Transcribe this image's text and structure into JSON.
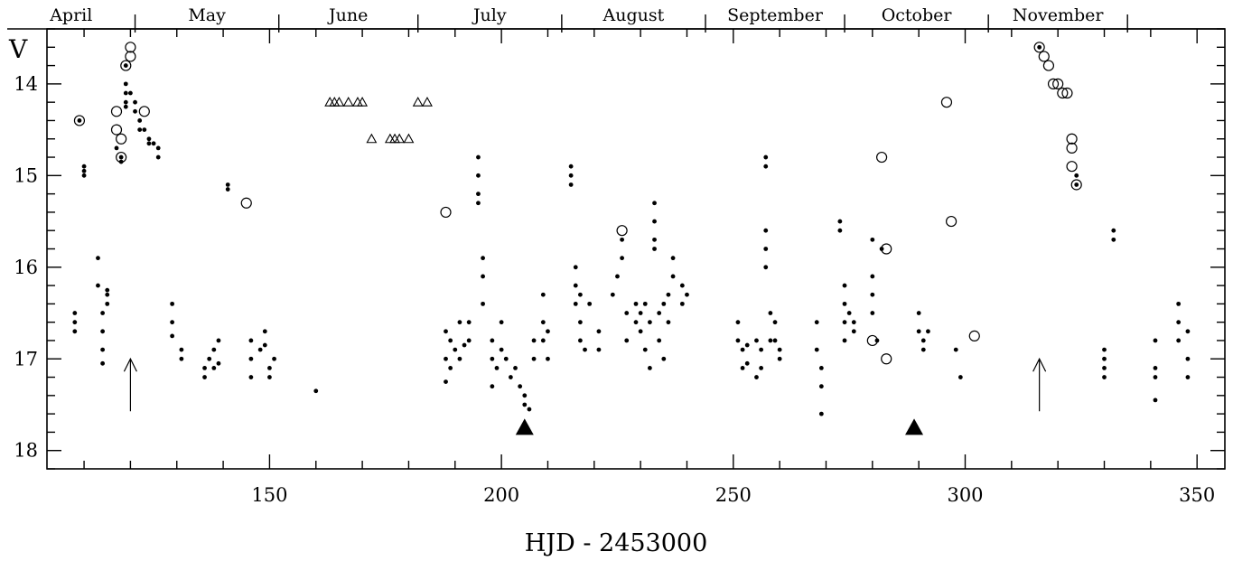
{
  "chart_data": {
    "type": "scatter",
    "xlabel": "HJD - 2453000",
    "ylabel": "V",
    "xlim": [
      102,
      356
    ],
    "ylim": [
      18.2,
      13.4
    ],
    "y_inverted": true,
    "x_ticks": [
      150,
      200,
      250,
      300,
      350
    ],
    "y_ticks": [
      14,
      15,
      16,
      17,
      18
    ],
    "months": [
      {
        "label": "April",
        "start": 91,
        "end": 121
      },
      {
        "label": "May",
        "start": 121,
        "end": 152
      },
      {
        "label": "June",
        "start": 152,
        "end": 182
      },
      {
        "label": "July",
        "start": 182,
        "end": 213
      },
      {
        "label": "August",
        "start": 213,
        "end": 244
      },
      {
        "label": "September",
        "start": 244,
        "end": 274
      },
      {
        "label": "October",
        "start": 274,
        "end": 305
      },
      {
        "label": "November",
        "start": 305,
        "end": 335
      }
    ],
    "grid": false,
    "series": [
      {
        "marker": "filled-circle",
        "points": [
          [
            108,
            16.5
          ],
          [
            108,
            16.6
          ],
          [
            108,
            16.7
          ],
          [
            109,
            14.4
          ],
          [
            110,
            14.9
          ],
          [
            110,
            15.0
          ],
          [
            110,
            14.95
          ],
          [
            113,
            15.9
          ],
          [
            113,
            16.2
          ],
          [
            114,
            16.5
          ],
          [
            114,
            16.7
          ],
          [
            114,
            16.9
          ],
          [
            114,
            17.05
          ],
          [
            115,
            16.3
          ],
          [
            115,
            16.4
          ],
          [
            115,
            16.25
          ],
          [
            117,
            14.7
          ],
          [
            118,
            14.8
          ],
          [
            118,
            14.85
          ],
          [
            119,
            13.8
          ],
          [
            119,
            14.0
          ],
          [
            119,
            14.1
          ],
          [
            119,
            14.2
          ],
          [
            119,
            14.25
          ],
          [
            120,
            14.1
          ],
          [
            121,
            14.2
          ],
          [
            121,
            14.3
          ],
          [
            122,
            14.4
          ],
          [
            122,
            14.5
          ],
          [
            123,
            14.5
          ],
          [
            124,
            14.6
          ],
          [
            124,
            14.65
          ],
          [
            125,
            14.65
          ],
          [
            126,
            14.8
          ],
          [
            126,
            14.7
          ],
          [
            129,
            16.4
          ],
          [
            129,
            16.6
          ],
          [
            129,
            16.75
          ],
          [
            131,
            16.9
          ],
          [
            131,
            17.0
          ],
          [
            136,
            17.1
          ],
          [
            136,
            17.2
          ],
          [
            137,
            17.0
          ],
          [
            138,
            16.9
          ],
          [
            138,
            17.1
          ],
          [
            139,
            16.8
          ],
          [
            139,
            17.05
          ],
          [
            141,
            15.1
          ],
          [
            141,
            15.15
          ],
          [
            146,
            16.8
          ],
          [
            146,
            17.0
          ],
          [
            146,
            17.2
          ],
          [
            148,
            16.9
          ],
          [
            149,
            16.7
          ],
          [
            149,
            16.85
          ],
          [
            150,
            17.1
          ],
          [
            150,
            17.2
          ],
          [
            151,
            17.0
          ],
          [
            160,
            17.35
          ],
          [
            188,
            16.7
          ],
          [
            188,
            17.0
          ],
          [
            188,
            17.25
          ],
          [
            189,
            16.8
          ],
          [
            189,
            17.1
          ],
          [
            190,
            16.9
          ],
          [
            191,
            16.6
          ],
          [
            191,
            17.0
          ],
          [
            192,
            16.85
          ],
          [
            193,
            16.6
          ],
          [
            193,
            16.8
          ],
          [
            195,
            15.0
          ],
          [
            195,
            14.8
          ],
          [
            195,
            15.2
          ],
          [
            195,
            15.3
          ],
          [
            196,
            15.9
          ],
          [
            196,
            16.1
          ],
          [
            196,
            16.4
          ],
          [
            198,
            16.8
          ],
          [
            198,
            17.0
          ],
          [
            198,
            17.3
          ],
          [
            199,
            17.1
          ],
          [
            200,
            16.6
          ],
          [
            200,
            16.9
          ],
          [
            201,
            17.0
          ],
          [
            202,
            17.2
          ],
          [
            203,
            17.1
          ],
          [
            204,
            17.3
          ],
          [
            205,
            17.4
          ],
          [
            205,
            17.5
          ],
          [
            206,
            17.55
          ],
          [
            207,
            16.8
          ],
          [
            207,
            17.0
          ],
          [
            209,
            16.3
          ],
          [
            209,
            16.6
          ],
          [
            209,
            16.8
          ],
          [
            210,
            16.7
          ],
          [
            210,
            17.0
          ],
          [
            215,
            14.9
          ],
          [
            215,
            15.0
          ],
          [
            215,
            15.1
          ],
          [
            216,
            16.0
          ],
          [
            216,
            16.2
          ],
          [
            216,
            16.4
          ],
          [
            217,
            16.3
          ],
          [
            217,
            16.6
          ],
          [
            217,
            16.8
          ],
          [
            218,
            16.9
          ],
          [
            219,
            16.4
          ],
          [
            221,
            16.7
          ],
          [
            221,
            16.9
          ],
          [
            224,
            16.3
          ],
          [
            225,
            16.1
          ],
          [
            226,
            15.7
          ],
          [
            226,
            15.9
          ],
          [
            227,
            16.5
          ],
          [
            227,
            16.8
          ],
          [
            229,
            16.4
          ],
          [
            229,
            16.6
          ],
          [
            230,
            16.5
          ],
          [
            230,
            16.7
          ],
          [
            231,
            16.4
          ],
          [
            231,
            16.9
          ],
          [
            232,
            16.6
          ],
          [
            232,
            17.1
          ],
          [
            233,
            15.3
          ],
          [
            233,
            15.5
          ],
          [
            233,
            15.7
          ],
          [
            233,
            15.8
          ],
          [
            234,
            16.5
          ],
          [
            234,
            16.8
          ],
          [
            235,
            16.4
          ],
          [
            235,
            17.0
          ],
          [
            236,
            16.3
          ],
          [
            236,
            16.6
          ],
          [
            237,
            15.9
          ],
          [
            237,
            16.1
          ],
          [
            239,
            16.2
          ],
          [
            239,
            16.4
          ],
          [
            240,
            16.3
          ],
          [
            251,
            16.6
          ],
          [
            251,
            16.8
          ],
          [
            252,
            16.9
          ],
          [
            252,
            17.1
          ],
          [
            253,
            16.85
          ],
          [
            253,
            17.05
          ],
          [
            255,
            16.8
          ],
          [
            255,
            17.2
          ],
          [
            256,
            16.9
          ],
          [
            256,
            17.1
          ],
          [
            257,
            14.8
          ],
          [
            257,
            14.9
          ],
          [
            257,
            15.6
          ],
          [
            257,
            15.8
          ],
          [
            257,
            16.0
          ],
          [
            258,
            16.5
          ],
          [
            258,
            16.8
          ],
          [
            259,
            16.6
          ],
          [
            259,
            16.8
          ],
          [
            260,
            16.9
          ],
          [
            260,
            17.0
          ],
          [
            268,
            16.6
          ],
          [
            268,
            16.9
          ],
          [
            269,
            17.1
          ],
          [
            269,
            17.3
          ],
          [
            269,
            17.6
          ],
          [
            273,
            15.5
          ],
          [
            273,
            15.6
          ],
          [
            274,
            16.2
          ],
          [
            274,
            16.4
          ],
          [
            274,
            16.6
          ],
          [
            274,
            16.8
          ],
          [
            275,
            16.5
          ],
          [
            276,
            16.6
          ],
          [
            276,
            16.7
          ],
          [
            280,
            15.7
          ],
          [
            280,
            16.1
          ],
          [
            280,
            16.3
          ],
          [
            280,
            16.5
          ],
          [
            281,
            16.8
          ],
          [
            282,
            15.8
          ],
          [
            290,
            16.5
          ],
          [
            290,
            16.7
          ],
          [
            291,
            16.8
          ],
          [
            291,
            16.9
          ],
          [
            292,
            16.7
          ],
          [
            298,
            16.9
          ],
          [
            299,
            17.2
          ],
          [
            316,
            13.6
          ],
          [
            324,
            15.0
          ],
          [
            324,
            15.1
          ],
          [
            330,
            16.9
          ],
          [
            330,
            17.0
          ],
          [
            330,
            17.1
          ],
          [
            330,
            17.2
          ],
          [
            332,
            15.6
          ],
          [
            332,
            15.7
          ],
          [
            341,
            16.8
          ],
          [
            341,
            17.1
          ],
          [
            341,
            17.2
          ],
          [
            341,
            17.45
          ],
          [
            346,
            16.4
          ],
          [
            346,
            16.6
          ],
          [
            346,
            16.8
          ],
          [
            348,
            16.7
          ],
          [
            348,
            17.0
          ],
          [
            348,
            17.2
          ]
        ]
      },
      {
        "marker": "open-circle",
        "points": [
          [
            109,
            14.4
          ],
          [
            117,
            14.3
          ],
          [
            117,
            14.5
          ],
          [
            118,
            14.6
          ],
          [
            118,
            14.8
          ],
          [
            119,
            13.8
          ],
          [
            120,
            13.6
          ],
          [
            120,
            13.7
          ],
          [
            123,
            14.3
          ],
          [
            145,
            15.3
          ],
          [
            188,
            15.4
          ],
          [
            226,
            15.6
          ],
          [
            280,
            16.8
          ],
          [
            282,
            14.8
          ],
          [
            283,
            15.8
          ],
          [
            283,
            17.0
          ],
          [
            296,
            14.2
          ],
          [
            297,
            15.5
          ],
          [
            302,
            16.75
          ],
          [
            316,
            13.6
          ],
          [
            317,
            13.7
          ],
          [
            318,
            13.8
          ],
          [
            319,
            14.0
          ],
          [
            320,
            14.0
          ],
          [
            321,
            14.1
          ],
          [
            322,
            14.1
          ],
          [
            323,
            14.6
          ],
          [
            323,
            14.7
          ],
          [
            323,
            14.9
          ],
          [
            324,
            15.1
          ]
        ]
      },
      {
        "marker": "open-triangle",
        "points": [
          [
            163,
            14.2
          ],
          [
            164,
            14.2
          ],
          [
            165,
            14.2
          ],
          [
            167,
            14.2
          ],
          [
            169,
            14.2
          ],
          [
            170,
            14.2
          ],
          [
            172,
            14.6
          ],
          [
            176,
            14.6
          ],
          [
            177,
            14.6
          ],
          [
            178,
            14.6
          ],
          [
            180,
            14.6
          ],
          [
            182,
            14.2
          ],
          [
            184,
            14.2
          ]
        ]
      },
      {
        "marker": "filled-triangle",
        "points": [
          [
            205,
            17.75
          ],
          [
            289,
            17.75
          ]
        ]
      },
      {
        "marker": "arrow-up",
        "points": [
          [
            120,
            17.0
          ],
          [
            316,
            17.0
          ]
        ]
      }
    ]
  }
}
